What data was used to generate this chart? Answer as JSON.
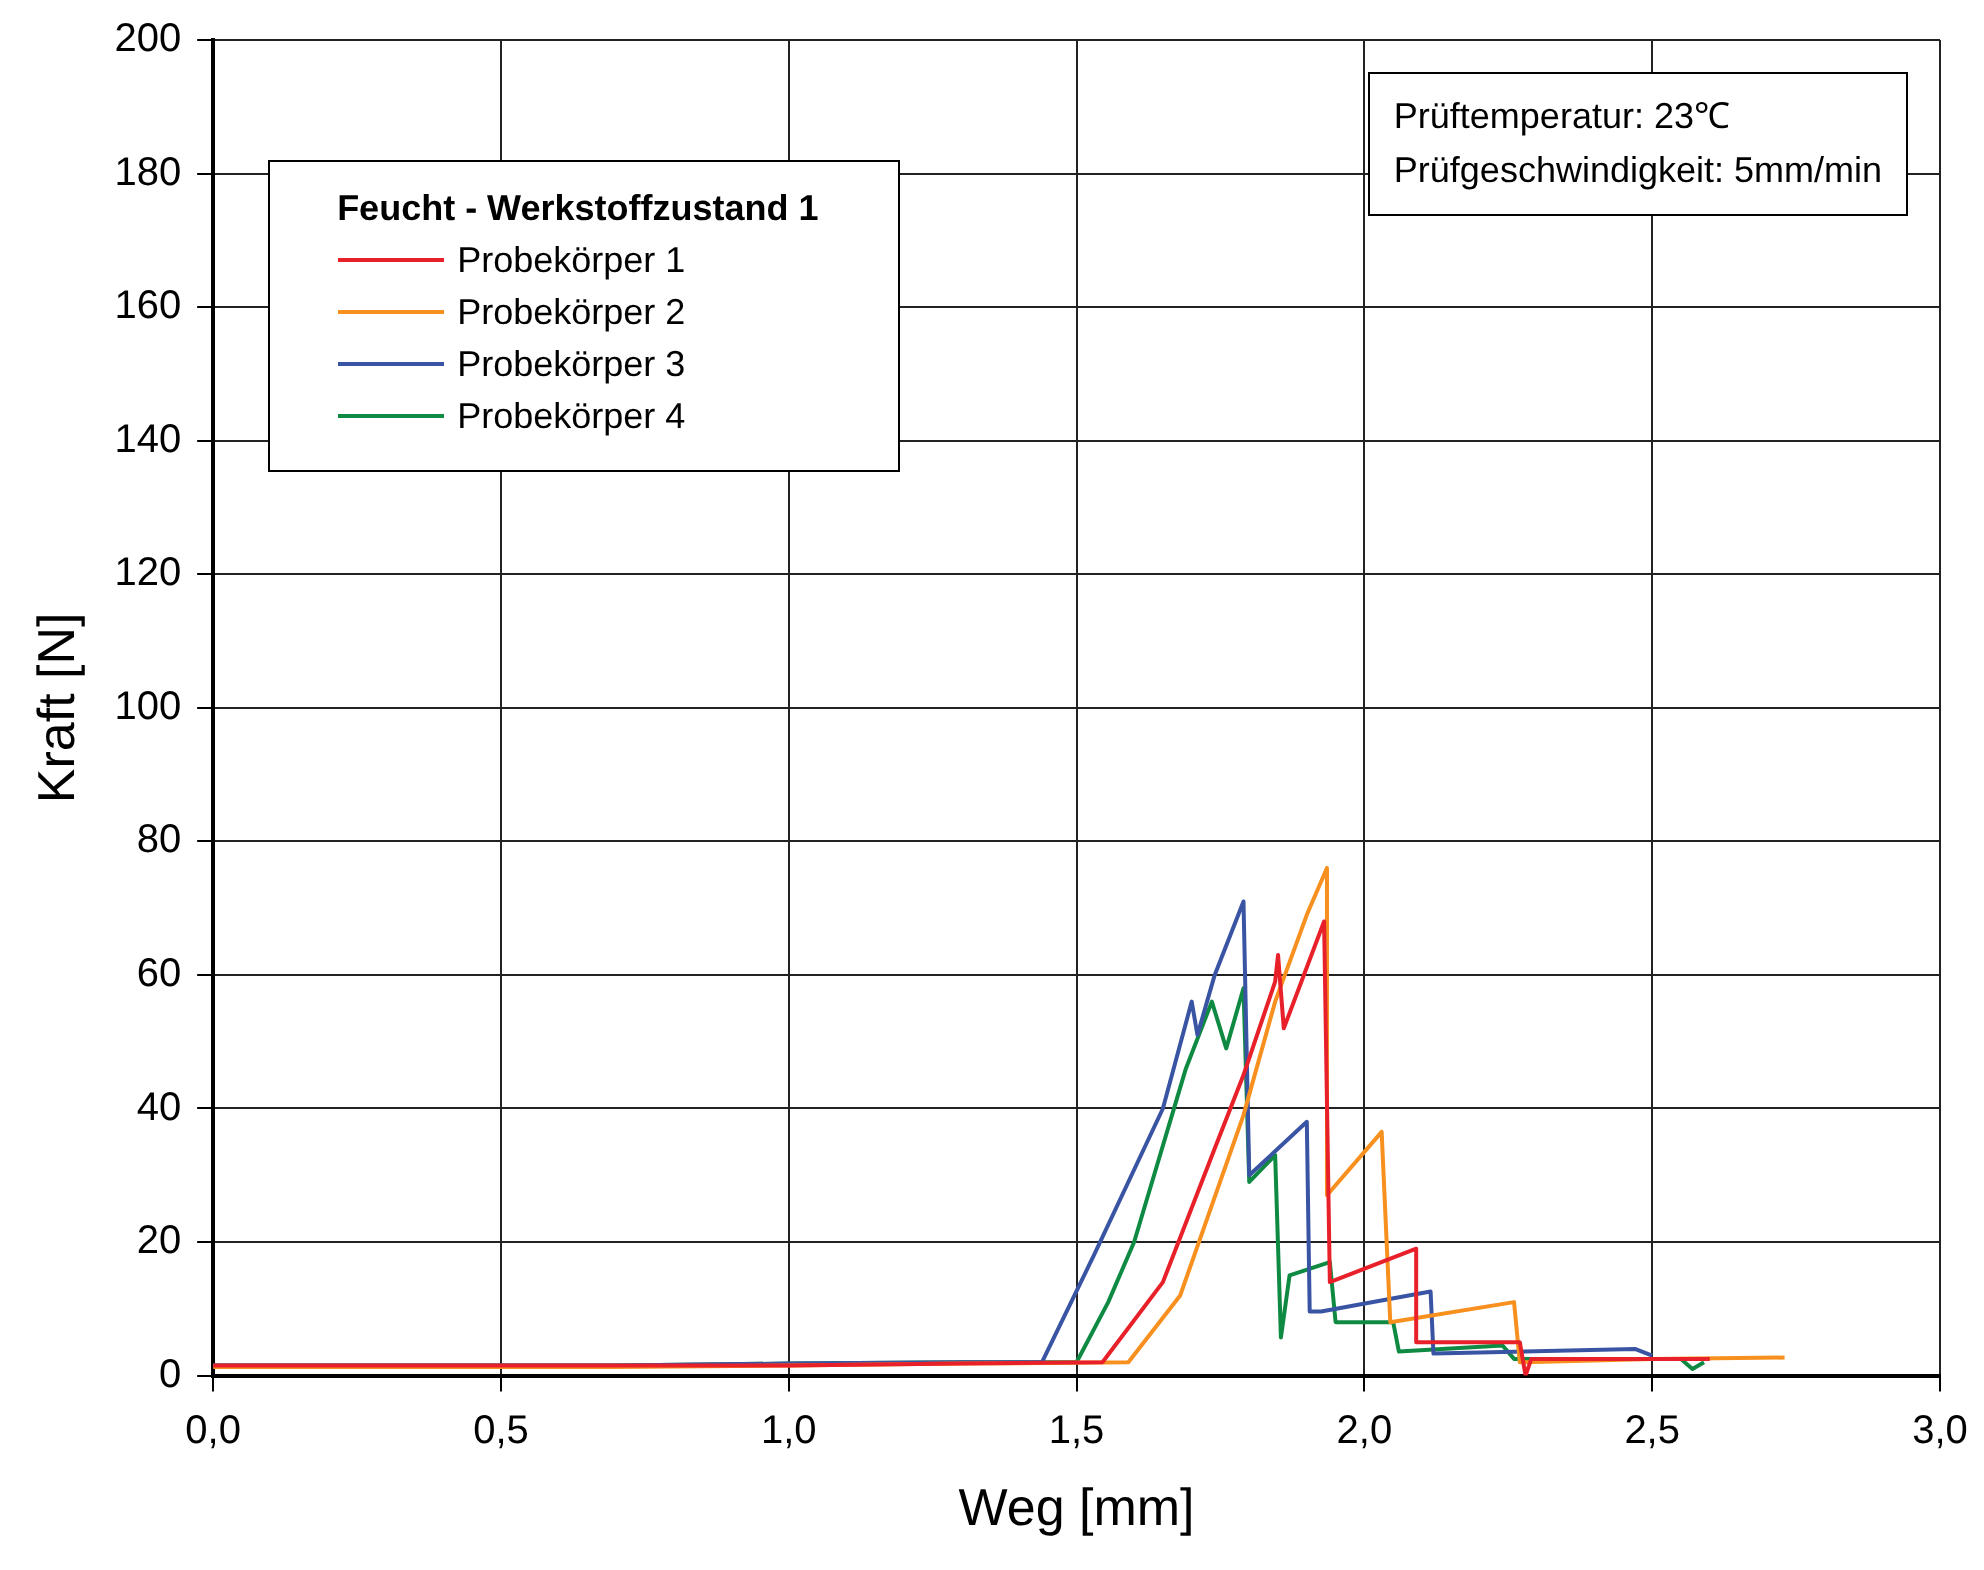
{
  "chart_data": {
    "type": "line",
    "xlabel": "Weg [mm]",
    "ylabel": "Kraft [N]",
    "legend_title": "Feucht - Werkstoffzustand 1",
    "xlim": [
      0,
      3
    ],
    "xticks": [
      {
        "value": 0,
        "label": "0,0"
      },
      {
        "value": 0.5,
        "label": "0,5"
      },
      {
        "value": 1,
        "label": "1,0"
      },
      {
        "value": 1.5,
        "label": "1,5"
      },
      {
        "value": 2,
        "label": "2,0"
      },
      {
        "value": 2.5,
        "label": "2,5"
      },
      {
        "value": 3,
        "label": "3,0"
      }
    ],
    "ylim": [
      0,
      200
    ],
    "yticks": [
      0,
      20,
      40,
      60,
      80,
      100,
      120,
      140,
      160,
      180,
      200
    ],
    "grid": true,
    "legend": "top left",
    "marker": "none",
    "line_style": "solid",
    "annotations": [
      "Prüftemperatur: 23℃",
      "Prüfgeschwindigkeit: 5mm/min"
    ],
    "series": [
      {
        "name": "Probekörper 1",
        "color": "#e8202a",
        "x": [
          0,
          0.3,
          0.7,
          1.0,
          1.3,
          1.545,
          1.65,
          1.74,
          1.79,
          1.845,
          1.85,
          1.86,
          1.93,
          1.94,
          2.09,
          2.09,
          2.27,
          2.28,
          2.29,
          2.6
        ],
        "values": [
          1.5,
          1.5,
          1.5,
          1.5,
          1.8,
          2,
          14,
          34,
          45,
          59,
          63,
          52,
          68,
          14,
          19,
          5,
          5,
          0,
          2.5,
          2.5
        ]
      },
      {
        "name": "Probekörper 2",
        "color": "#f7901e",
        "x": [
          0,
          0.3,
          0.7,
          1.0,
          1.3,
          1.59,
          1.68,
          1.79,
          1.845,
          1.9,
          1.935,
          1.935,
          2.03,
          2.045,
          2.26,
          2.27,
          2.5,
          2.73
        ],
        "values": [
          1.3,
          1.3,
          1.3,
          1.5,
          1.8,
          2,
          12,
          39,
          56,
          69,
          76,
          27,
          36.5,
          8,
          11,
          2,
          2.5,
          2.7
        ]
      },
      {
        "name": "Probekörper 3",
        "color": "#3a54a4",
        "x": [
          0,
          0.3,
          0.7,
          1.0,
          1.3,
          1.44,
          1.53,
          1.65,
          1.7,
          1.71,
          1.74,
          1.79,
          1.8,
          1.9,
          1.905,
          1.925,
          2.115,
          2.12,
          2.47,
          2.5
        ],
        "values": [
          1.5,
          1.5,
          1.5,
          1.8,
          2,
          2,
          18,
          40,
          56,
          51,
          60,
          71,
          30,
          38,
          9.6,
          9.6,
          12.6,
          3.3,
          4,
          3
        ]
      },
      {
        "name": "Probekörper 4",
        "color": "#0f8a43",
        "x": [
          0,
          0.3,
          0.7,
          1.0,
          1.3,
          1.5,
          1.555,
          1.6,
          1.69,
          1.735,
          1.76,
          1.79,
          1.8,
          1.845,
          1.855,
          1.87,
          1.94,
          1.95,
          2.05,
          2.06,
          2.24,
          2.26,
          2.55,
          2.57,
          2.59
        ],
        "values": [
          1.5,
          1.5,
          1.5,
          1.8,
          2,
          2,
          11,
          20,
          46,
          56,
          49,
          58,
          29,
          33,
          5.7,
          15,
          17,
          8,
          8,
          3.6,
          4.5,
          2.5,
          2.5,
          1,
          2
        ]
      }
    ]
  }
}
